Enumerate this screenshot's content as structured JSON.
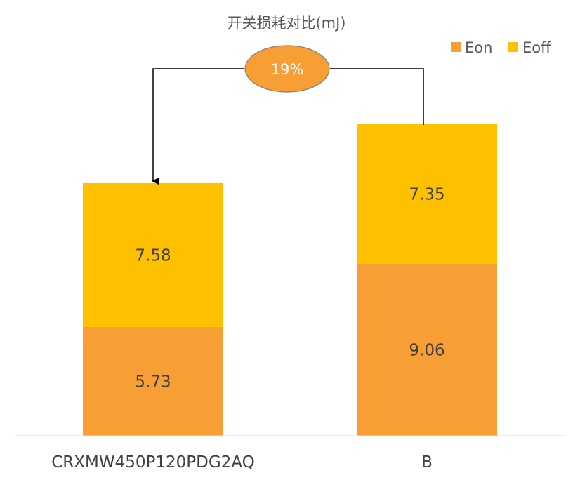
{
  "chart_data": {
    "type": "bar",
    "stacked": true,
    "title": "开关损耗对比(mJ)",
    "categories": [
      "CRXMW450P120PDG2AQ",
      "B"
    ],
    "series": [
      {
        "name": "Eon",
        "values": [
          5.73,
          9.06
        ],
        "color": "#F79E35"
      },
      {
        "name": "Eoff",
        "values": [
          7.58,
          7.35
        ],
        "color": "#FFC000"
      }
    ],
    "ylim": [
      0,
      16.41
    ],
    "grid": false,
    "legend_position": "top-right",
    "annotation": {
      "text": "19%",
      "color": "#F79E35",
      "from_category": "B",
      "to_category": "CRXMW450P120PDG2AQ"
    }
  }
}
